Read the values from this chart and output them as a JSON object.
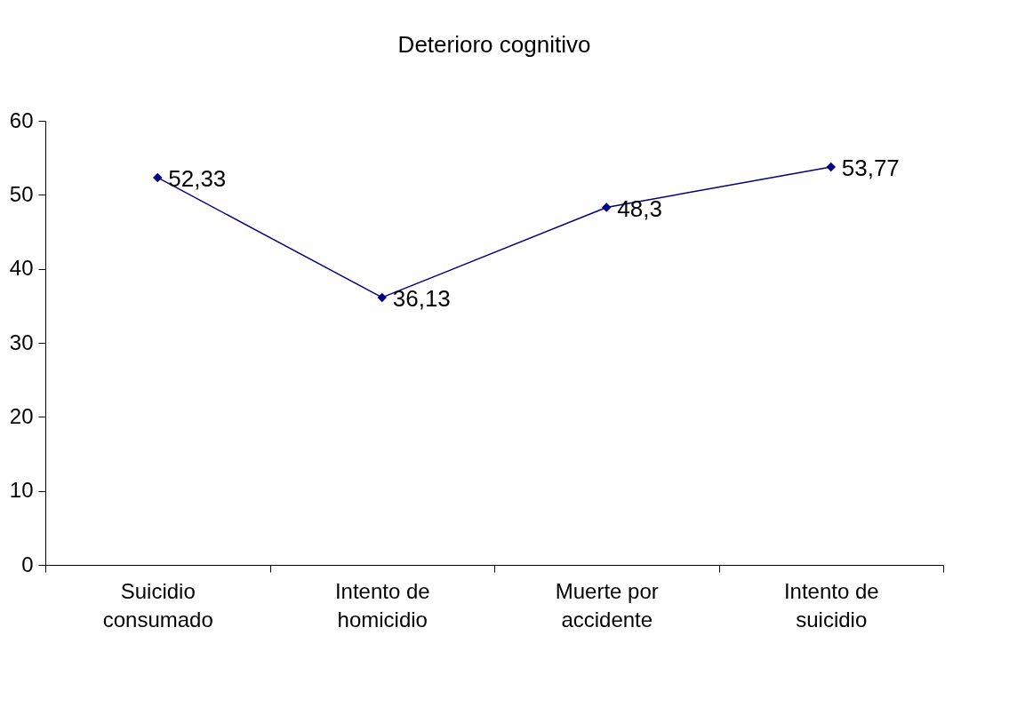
{
  "chart_data": {
    "type": "line",
    "title": "Deterioro cognitivo",
    "categories": [
      "Suicidio consumado",
      "Intento de homicidio",
      "Muerte por accidente",
      "Intento de suicidio"
    ],
    "series": [
      {
        "color": "#000080",
        "values": [
          52.33,
          36.13,
          48.3,
          53.77
        ],
        "value_labels": [
          "52,33",
          "36,13",
          "48,3",
          "53,77"
        ]
      }
    ],
    "ylim": [
      0,
      60
    ],
    "yticks": [
      0,
      10,
      20,
      30,
      40,
      50,
      60
    ],
    "grid": false,
    "marker": "diamond",
    "line_style": "solid"
  }
}
